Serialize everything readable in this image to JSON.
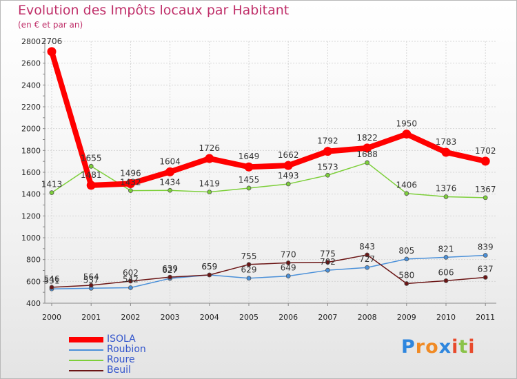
{
  "title": "Evolution des Impôts locaux par Habitant",
  "subtitle": "(en € et par an)",
  "brand": "Proxiti",
  "brand_letter_colors": [
    "#2e86de",
    "#f08a24",
    "#f08a24",
    "#2e86de",
    "#e84a2c",
    "#8bc34a",
    "#e84a2c"
  ],
  "chart_data": {
    "type": "line",
    "title": "Evolution des Impôts locaux par Habitant",
    "subtitle": "(en € et par an)",
    "xlabel": "",
    "ylabel": "",
    "x": [
      "2000",
      "2001",
      "2002",
      "2003",
      "2004",
      "2005",
      "2006",
      "2007",
      "2008",
      "2009",
      "2010",
      "2011"
    ],
    "ylim": [
      400,
      2800
    ],
    "yticks": [
      400,
      600,
      800,
      1000,
      1200,
      1400,
      1600,
      1800,
      2000,
      2200,
      2400,
      2600,
      2800
    ],
    "legend_position": "bottom-left",
    "series": [
      {
        "name": "ISOLA",
        "color": "#ff0000",
        "values": [
          2706,
          1481,
          1496,
          1604,
          1726,
          1649,
          1662,
          1792,
          1822,
          1950,
          1783,
          1702
        ]
      },
      {
        "name": "Roubion",
        "color": "#4a90d9",
        "values": [
          531,
          537,
          542,
          627,
          659,
          629,
          649,
          702,
          727,
          805,
          821,
          839
        ]
      },
      {
        "name": "Roure",
        "color": "#7dcf3a",
        "values": [
          1413,
          1655,
          1432,
          1434,
          1419,
          1455,
          1493,
          1573,
          1688,
          1406,
          1376,
          1367
        ]
      },
      {
        "name": "Beuil",
        "color": "#6b1515",
        "values": [
          546,
          564,
          602,
          639,
          659,
          755,
          770,
          775,
          843,
          580,
          606,
          637
        ]
      }
    ]
  }
}
